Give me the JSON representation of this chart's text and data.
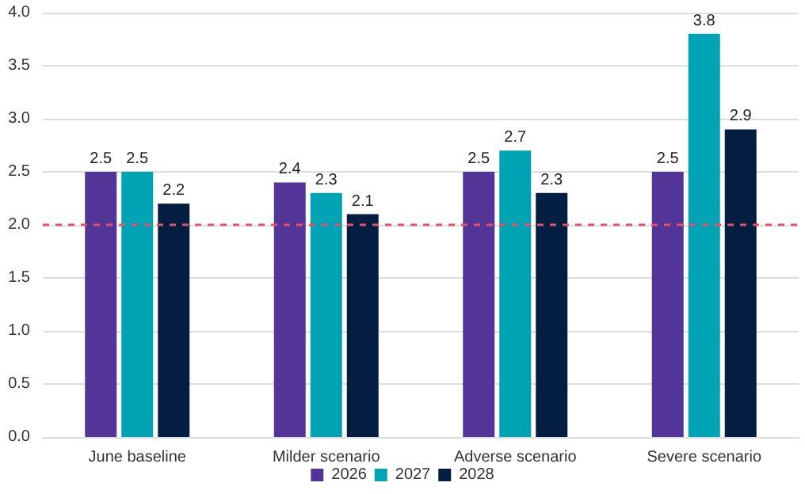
{
  "chart_data": {
    "type": "bar",
    "categories": [
      "June baseline",
      "Milder scenario",
      "Adverse scenario",
      "Severe scenario"
    ],
    "series": [
      {
        "name": "2026",
        "color": "#523596",
        "values": [
          2.5,
          2.4,
          2.5,
          2.5
        ]
      },
      {
        "name": "2027",
        "color": "#00a3b4",
        "values": [
          2.5,
          2.3,
          2.7,
          3.8
        ]
      },
      {
        "name": "2028",
        "color": "#041e42",
        "values": [
          2.2,
          2.1,
          2.3,
          2.9
        ]
      }
    ],
    "ylim": [
      0,
      4
    ],
    "yticks": [
      "0.0",
      "0.5",
      "1.0",
      "1.5",
      "2.0",
      "2.5",
      "3.0",
      "3.5",
      "4.0"
    ],
    "ref_lines": [
      {
        "axis": "y",
        "value": 2,
        "color": "#e8506a",
        "line_style": "dashed"
      }
    ],
    "data_labels": true,
    "grid": "y",
    "legend": "bottom"
  }
}
